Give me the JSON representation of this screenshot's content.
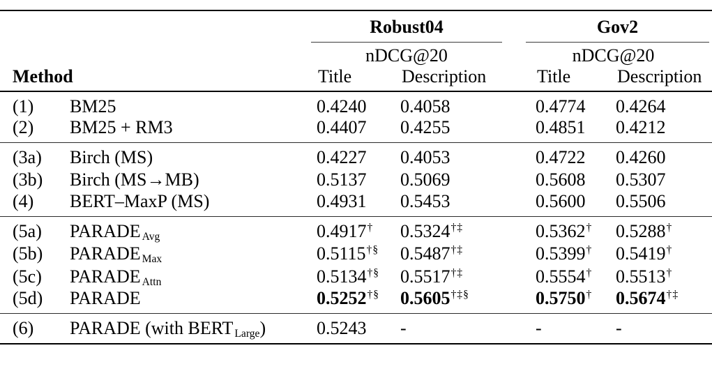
{
  "colors": {
    "background": "#ffffff",
    "text": "#000000",
    "rule": "#000000"
  },
  "table": {
    "method_header": "Method",
    "groups": [
      {
        "label": "Robust04",
        "metric": "nDCG@20",
        "sub_headers": [
          "Title",
          "Description"
        ]
      },
      {
        "label": "Gov2",
        "metric": "nDCG@20",
        "sub_headers": [
          "Title",
          "Description"
        ]
      }
    ],
    "sections": [
      {
        "rows": [
          {
            "id": "(1)",
            "method_pre": "BM25",
            "method_sub": "",
            "method_post": "",
            "cells": [
              {
                "v": "0.4240",
                "sup": "",
                "b": false
              },
              {
                "v": "0.4058",
                "sup": "",
                "b": false
              },
              {
                "v": "0.4774",
                "sup": "",
                "b": false
              },
              {
                "v": "0.4264",
                "sup": "",
                "b": false
              }
            ]
          },
          {
            "id": "(2)",
            "method_pre": "BM25 + RM3",
            "method_sub": "",
            "method_post": "",
            "cells": [
              {
                "v": "0.4407",
                "sup": "",
                "b": false
              },
              {
                "v": "0.4255",
                "sup": "",
                "b": false
              },
              {
                "v": "0.4851",
                "sup": "",
                "b": false
              },
              {
                "v": "0.4212",
                "sup": "",
                "b": false
              }
            ]
          }
        ]
      },
      {
        "rows": [
          {
            "id": "(3a)",
            "method_pre": "Birch (MS)",
            "method_sub": "",
            "method_post": "",
            "cells": [
              {
                "v": "0.4227",
                "sup": "",
                "b": false
              },
              {
                "v": "0.4053",
                "sup": "",
                "b": false
              },
              {
                "v": "0.4722",
                "sup": "",
                "b": false
              },
              {
                "v": "0.4260",
                "sup": "",
                "b": false
              }
            ]
          },
          {
            "id": "(3b)",
            "method_pre": "Birch (MS→MB)",
            "method_sub": "",
            "method_post": "",
            "cells": [
              {
                "v": "0.5137",
                "sup": "",
                "b": false
              },
              {
                "v": "0.5069",
                "sup": "",
                "b": false
              },
              {
                "v": "0.5608",
                "sup": "",
                "b": false
              },
              {
                "v": "0.5307",
                "sup": "",
                "b": false
              }
            ]
          },
          {
            "id": "(4)",
            "method_pre": "BERT–MaxP (MS)",
            "method_sub": "",
            "method_post": "",
            "cells": [
              {
                "v": "0.4931",
                "sup": "",
                "b": false
              },
              {
                "v": "0.5453",
                "sup": "",
                "b": false
              },
              {
                "v": "0.5600",
                "sup": "",
                "b": false
              },
              {
                "v": "0.5506",
                "sup": "",
                "b": false
              }
            ]
          }
        ]
      },
      {
        "rows": [
          {
            "id": "(5a)",
            "method_pre": "PARADE",
            "method_sub": "Avg",
            "method_post": "",
            "cells": [
              {
                "v": "0.4917",
                "sup": "†",
                "b": false
              },
              {
                "v": "0.5324",
                "sup": "†‡",
                "b": false
              },
              {
                "v": "0.5362",
                "sup": "†",
                "b": false
              },
              {
                "v": "0.5288",
                "sup": "†",
                "b": false
              }
            ]
          },
          {
            "id": "(5b)",
            "method_pre": "PARADE",
            "method_sub": "Max",
            "method_post": "",
            "cells": [
              {
                "v": "0.5115",
                "sup": "†§",
                "b": false
              },
              {
                "v": "0.5487",
                "sup": "†‡",
                "b": false
              },
              {
                "v": "0.5399",
                "sup": "†",
                "b": false
              },
              {
                "v": "0.5419",
                "sup": "†",
                "b": false
              }
            ]
          },
          {
            "id": "(5c)",
            "method_pre": "PARADE",
            "method_sub": "Attn",
            "method_post": "",
            "cells": [
              {
                "v": "0.5134",
                "sup": "†§",
                "b": false
              },
              {
                "v": "0.5517",
                "sup": "†‡",
                "b": false
              },
              {
                "v": "0.5554",
                "sup": "†",
                "b": false
              },
              {
                "v": "0.5513",
                "sup": "†",
                "b": false
              }
            ]
          },
          {
            "id": "(5d)",
            "method_pre": "PARADE",
            "method_sub": "",
            "method_post": "",
            "cells": [
              {
                "v": "0.5252",
                "sup": "†§",
                "b": true
              },
              {
                "v": "0.5605",
                "sup": "†‡§",
                "b": true
              },
              {
                "v": "0.5750",
                "sup": "†",
                "b": true
              },
              {
                "v": "0.5674",
                "sup": "†‡",
                "b": true
              }
            ]
          }
        ]
      },
      {
        "rows": [
          {
            "id": "(6)",
            "method_pre": "PARADE (with BERT",
            "method_sub": "Large",
            "method_post": ")",
            "cells": [
              {
                "v": "0.5243",
                "sup": "",
                "b": false
              },
              {
                "v": "-",
                "sup": "",
                "b": false
              },
              {
                "v": "-",
                "sup": "",
                "b": false
              },
              {
                "v": "-",
                "sup": "",
                "b": false
              }
            ]
          }
        ]
      }
    ]
  }
}
